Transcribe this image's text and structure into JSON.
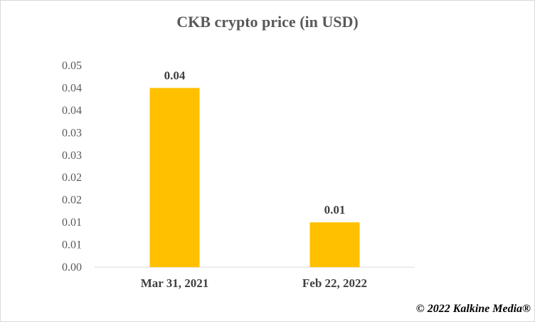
{
  "chart_data": {
    "type": "bar",
    "title": "CKB crypto price (in USD)",
    "xlabel": "",
    "ylabel": "",
    "categories": [
      "Mar 31, 2021",
      "Feb 22, 2022"
    ],
    "values": [
      0.04,
      0.01
    ],
    "data_labels": [
      "0.04",
      "0.01"
    ],
    "y_ticks": [
      0,
      0.005,
      0.01,
      0.015,
      0.02,
      0.025,
      0.03,
      0.035,
      0.04,
      0.045
    ],
    "y_tick_labels": [
      "0.00",
      "0.01",
      "0.01",
      "0.02",
      "0.02",
      "0.03",
      "0.03",
      "0.04",
      "0.04",
      "0.05"
    ],
    "ylim": [
      0,
      0.045
    ],
    "grid": false,
    "legend": "none",
    "bar_color": "#FFC000"
  },
  "credit": "© 2022 Kalkine Media®"
}
